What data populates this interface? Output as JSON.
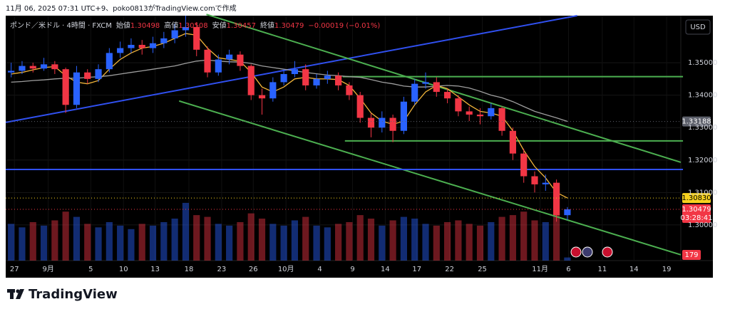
{
  "caption": "11月 06, 2025 07:31 UTC+9、poko0813がTradingView.comで作成",
  "brand": "TradingView",
  "chart_data": {
    "type": "candlestick",
    "legend": {
      "symbol": "ポンド／米ドル · 4時間 · FXCM",
      "items": [
        {
          "name": "始値",
          "value": "1.30498"
        },
        {
          "name": "高値",
          "value": "1.30508"
        },
        {
          "name": "安値",
          "value": "1.30457"
        },
        {
          "name": "終値",
          "value": "1.30479"
        }
      ],
      "change": "−0.00019 (−0.01%)"
    },
    "currency": "USD",
    "up_color": "#2962ff",
    "down_color": "#f23645",
    "x": [
      0.5,
      1.5,
      2.5,
      3.5,
      4.5,
      5.5,
      6.5,
      7.5,
      8.5,
      9.5,
      10.5,
      11.5,
      12.5,
      13.5,
      14.5,
      15.5,
      16.5,
      17.5,
      18.5,
      19.5,
      20.5,
      21.5,
      22.5,
      23.5,
      24.5,
      25.5,
      26.5,
      27.5,
      28.5,
      29.5,
      30.5,
      31.5,
      32.5,
      33.5,
      34.5,
      35.5,
      36.5,
      37.5,
      38.5,
      39.5,
      40.5,
      41.5,
      42.5,
      43.5,
      44.5,
      45.5,
      46.5,
      47.5,
      48.5,
      49.5,
      50.5,
      51.5
    ],
    "open": [
      1.347,
      1.3475,
      1.349,
      1.3482,
      1.3495,
      1.348,
      1.337,
      1.347,
      1.345,
      1.348,
      1.353,
      1.3545,
      1.3555,
      1.3545,
      1.356,
      1.3575,
      1.36,
      1.361,
      1.354,
      1.347,
      1.351,
      1.3525,
      1.349,
      1.34,
      1.339,
      1.344,
      1.3465,
      1.348,
      1.343,
      1.345,
      1.346,
      1.343,
      1.34,
      1.333,
      1.33,
      1.333,
      1.329,
      1.338,
      1.3435,
      1.344,
      1.341,
      1.339,
      1.335,
      1.334,
      1.3335,
      1.336,
      1.329,
      1.322,
      1.315,
      1.3125,
      1.313,
      1.303
    ],
    "high": [
      1.35,
      1.3505,
      1.35,
      1.3515,
      1.3505,
      1.3485,
      1.349,
      1.348,
      1.3495,
      1.3545,
      1.3565,
      1.3575,
      1.357,
      1.358,
      1.3595,
      1.362,
      1.3645,
      1.3625,
      1.355,
      1.3525,
      1.354,
      1.3535,
      1.3495,
      1.342,
      1.3455,
      1.348,
      1.3505,
      1.3495,
      1.3465,
      1.3475,
      1.347,
      1.344,
      1.341,
      1.3345,
      1.335,
      1.334,
      1.3395,
      1.345,
      1.347,
      1.3455,
      1.342,
      1.34,
      1.3365,
      1.336,
      1.3375,
      1.3365,
      1.33,
      1.3235,
      1.3165,
      1.3155,
      1.314,
      1.3055
    ],
    "low": [
      1.3455,
      1.3465,
      1.347,
      1.3475,
      1.3465,
      1.3345,
      1.336,
      1.3435,
      1.344,
      1.347,
      1.3515,
      1.353,
      1.3525,
      1.353,
      1.3545,
      1.356,
      1.358,
      1.352,
      1.3455,
      1.346,
      1.3495,
      1.3475,
      1.3385,
      1.334,
      1.338,
      1.343,
      1.3455,
      1.3415,
      1.342,
      1.3435,
      1.3415,
      1.3385,
      1.3315,
      1.327,
      1.3285,
      1.3255,
      1.328,
      1.337,
      1.342,
      1.3395,
      1.3375,
      1.3335,
      1.332,
      1.331,
      1.3325,
      1.3275,
      1.32,
      1.313,
      1.31,
      1.3105,
      1.301,
      1.3015
    ],
    "close": [
      1.3475,
      1.349,
      1.3482,
      1.3495,
      1.348,
      1.337,
      1.347,
      1.345,
      1.348,
      1.353,
      1.3545,
      1.3555,
      1.3545,
      1.356,
      1.3575,
      1.36,
      1.361,
      1.354,
      1.347,
      1.351,
      1.3525,
      1.349,
      1.34,
      1.339,
      1.344,
      1.3465,
      1.348,
      1.343,
      1.345,
      1.346,
      1.343,
      1.34,
      1.333,
      1.33,
      1.333,
      1.329,
      1.338,
      1.3435,
      1.344,
      1.341,
      1.339,
      1.335,
      1.334,
      1.3335,
      1.336,
      1.329,
      1.322,
      1.315,
      1.3125,
      1.313,
      1.303,
      1.3048
    ],
    "moving_averages": [
      {
        "color": "#f2b53a",
        "values": [
          1.3465,
          1.347,
          1.3478,
          1.3485,
          1.3488,
          1.346,
          1.344,
          1.3435,
          1.3445,
          1.348,
          1.351,
          1.353,
          1.3545,
          1.355,
          1.356,
          1.3575,
          1.359,
          1.3585,
          1.3545,
          1.3515,
          1.351,
          1.3505,
          1.347,
          1.3425,
          1.341,
          1.3425,
          1.345,
          1.3455,
          1.345,
          1.345,
          1.3448,
          1.343,
          1.339,
          1.3345,
          1.332,
          1.331,
          1.332,
          1.337,
          1.341,
          1.343,
          1.342,
          1.3395,
          1.337,
          1.335,
          1.3345,
          1.3335,
          1.329,
          1.323,
          1.318,
          1.3145,
          1.31,
          1.3083
        ]
      },
      {
        "color": "#9e9e9e",
        "values": [
          1.344,
          1.3442,
          1.3445,
          1.3447,
          1.345,
          1.3452,
          1.3452,
          1.3455,
          1.3457,
          1.346,
          1.3465,
          1.347,
          1.3475,
          1.348,
          1.3485,
          1.349,
          1.3498,
          1.3505,
          1.3508,
          1.3505,
          1.3503,
          1.3502,
          1.3498,
          1.349,
          1.3485,
          1.348,
          1.3475,
          1.347,
          1.3466,
          1.3462,
          1.346,
          1.3457,
          1.3455,
          1.3448,
          1.344,
          1.3435,
          1.3428,
          1.3425,
          1.3425,
          1.3428,
          1.343,
          1.3428,
          1.3422,
          1.3412,
          1.34,
          1.3392,
          1.338,
          1.3365,
          1.335,
          1.334,
          1.333,
          1.3319
        ]
      }
    ],
    "volume": {
      "axis": "y2",
      "values": [
        2100,
        1900,
        2200,
        2000,
        2300,
        2800,
        2500,
        2100,
        1900,
        2200,
        2000,
        1800,
        2100,
        2000,
        2200,
        2400,
        3300,
        2600,
        2500,
        2100,
        2000,
        2200,
        2700,
        2400,
        2100,
        2000,
        2300,
        2500,
        2000,
        1900,
        2100,
        2200,
        2600,
        2400,
        2000,
        2300,
        2500,
        2400,
        2100,
        2000,
        2200,
        2300,
        2100,
        2000,
        2200,
        2500,
        2600,
        2800,
        2300,
        2200,
        2700,
        179
      ]
    },
    "y2lim": [
      0,
      14000
    ],
    "trendlines": [
      {
        "color": "#3050f0",
        "x": [
          0,
          52.4
        ],
        "y": [
          1.3316,
          1.3645
        ]
      },
      {
        "color": "#4caf50",
        "x": [
          18.4,
          61.9
        ],
        "y": [
          1.3649,
          1.3193
        ]
      },
      {
        "color": "#4caf50",
        "x": [
          15.9,
          61.9
        ],
        "y": [
          1.3382,
          1.2908
        ]
      },
      {
        "color": "#4caf50",
        "x": [
          30.9,
          62.1
        ],
        "y": [
          1.3457,
          1.3457
        ]
      },
      {
        "color": "#4caf50",
        "x": [
          31.1,
          62.1
        ],
        "y": [
          1.3259,
          1.3259
        ]
      },
      {
        "color": "#3050f0",
        "x": [
          0,
          62.1
        ],
        "y": [
          1.3171,
          1.3171
        ]
      }
    ],
    "price_labels": [
      {
        "value": 1.33188,
        "label": "1.33188",
        "color": "#5d606b"
      },
      {
        "value": 1.3083,
        "label": "1.30830",
        "color": "#f7d21e"
      },
      {
        "value": 1.30479,
        "label": "1.30479",
        "color": "#f23645",
        "countdown": "03:28:41"
      }
    ],
    "xlim": [
      0,
      61.9
    ],
    "xticks": [
      {
        "value": 0.8,
        "label": "27"
      },
      {
        "value": 3.9,
        "label": "9月"
      },
      {
        "value": 7.8,
        "label": "5"
      },
      {
        "value": 10.8,
        "label": "10"
      },
      {
        "value": 13.7,
        "label": "13"
      },
      {
        "value": 16.8,
        "label": "18"
      },
      {
        "value": 19.8,
        "label": "23"
      },
      {
        "value": 22.7,
        "label": "26"
      },
      {
        "value": 25.7,
        "label": "10月"
      },
      {
        "value": 28.8,
        "label": "4"
      },
      {
        "value": 31.8,
        "label": "9"
      },
      {
        "value": 34.8,
        "label": "14"
      },
      {
        "value": 37.7,
        "label": "17"
      },
      {
        "value": 40.7,
        "label": "22"
      },
      {
        "value": 43.7,
        "label": "25"
      },
      {
        "value": 49.0,
        "label": "11月"
      },
      {
        "value": 51.6,
        "label": "6"
      },
      {
        "value": 54.7,
        "label": "11"
      },
      {
        "value": 57.6,
        "label": "14"
      },
      {
        "value": 60.6,
        "label": "19"
      }
    ],
    "ylim": [
      1.289,
      1.3645
    ],
    "yticks": [
      {
        "value": 1.35,
        "label": "1.35000"
      },
      {
        "value": 1.34,
        "label": "1.34000"
      },
      {
        "value": 1.33,
        "label": "1.33000"
      },
      {
        "value": 1.32,
        "label": "1.32000"
      },
      {
        "value": 1.31,
        "label": "1.31000"
      },
      {
        "value": 1.3,
        "label": "1.30000"
      }
    ],
    "grid": true
  }
}
